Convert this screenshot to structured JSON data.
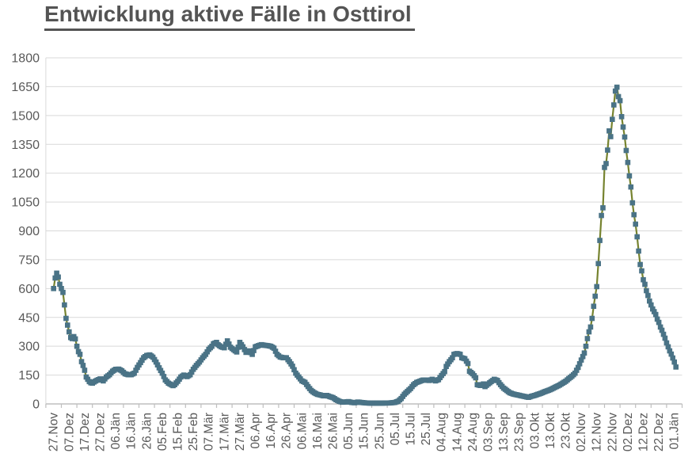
{
  "chart_data": {
    "type": "line",
    "title": "Entwicklung aktive Fälle in Osttirol",
    "xlabel": "",
    "ylabel": "",
    "legend": "none",
    "grid": "horizontal",
    "ylim": [
      0,
      1800
    ],
    "y_ticks": [
      0,
      150,
      300,
      450,
      600,
      750,
      900,
      1050,
      1200,
      1350,
      1500,
      1650,
      1800
    ],
    "x_interval_days": 10,
    "x_tick_labels": [
      "27.Nov",
      "07.Dez",
      "17.Dez",
      "27.Dez",
      "06.Jän",
      "16.Jän",
      "26.Jän",
      "05.Feb",
      "15.Feb",
      "25.Feb",
      "07.Mär",
      "17.Mär",
      "27.Mär",
      "06.Apr",
      "16.Apr",
      "26.Apr",
      "06.Mai",
      "16.Mai",
      "26.Mai",
      "05.Jun",
      "15.Jun",
      "25.Jun",
      "05.Jul",
      "15.Jul",
      "25.Jul",
      "04.Aug",
      "14.Aug",
      "24.Aug",
      "03.Sep",
      "13.Sep",
      "23.Sep",
      "03.Okt",
      "13.Okt",
      "23.Okt",
      "02.Nov",
      "12.Nov",
      "22.Nov",
      "02.Dez",
      "12.Dez",
      "22.Dez",
      "01.Jän"
    ],
    "colors": {
      "line": "#76832F",
      "marker": "#4A7386",
      "grid": "#D9D9D9",
      "axis": "#BFBFBF",
      "tick_text": "#595959",
      "title_text": "#545454"
    },
    "series": [
      {
        "name": "aktive Fälle",
        "marker": "square",
        "points": [
          [
            0,
            600
          ],
          [
            1,
            655
          ],
          [
            2,
            680
          ],
          [
            3,
            660
          ],
          [
            4,
            622
          ],
          [
            5,
            600
          ],
          [
            6,
            580
          ],
          [
            7,
            515
          ],
          [
            8,
            445
          ],
          [
            9,
            410
          ],
          [
            10,
            375
          ],
          [
            11,
            345
          ],
          [
            12,
            340
          ],
          [
            13,
            350
          ],
          [
            14,
            338
          ],
          [
            15,
            300
          ],
          [
            16,
            272
          ],
          [
            17,
            258
          ],
          [
            18,
            220
          ],
          [
            19,
            200
          ],
          [
            20,
            175
          ],
          [
            21,
            140
          ],
          [
            22,
            128
          ],
          [
            23,
            116
          ],
          [
            24,
            110
          ],
          [
            25,
            108
          ],
          [
            26,
            114
          ],
          [
            27,
            119
          ],
          [
            28,
            123
          ],
          [
            30,
            130
          ],
          [
            32,
            120
          ],
          [
            34,
            140
          ],
          [
            36,
            152
          ],
          [
            38,
            170
          ],
          [
            40,
            180
          ],
          [
            42,
            181
          ],
          [
            44,
            172
          ],
          [
            46,
            157
          ],
          [
            48,
            152
          ],
          [
            50,
            152
          ],
          [
            52,
            160
          ],
          [
            54,
            190
          ],
          [
            56,
            215
          ],
          [
            58,
            240
          ],
          [
            60,
            252
          ],
          [
            62,
            255
          ],
          [
            64,
            243
          ],
          [
            66,
            218
          ],
          [
            68,
            188
          ],
          [
            70,
            160
          ],
          [
            72,
            125
          ],
          [
            74,
            108
          ],
          [
            76,
            99
          ],
          [
            77,
            95
          ],
          [
            78,
            100
          ],
          [
            80,
            118
          ],
          [
            82,
            140
          ],
          [
            84,
            150
          ],
          [
            86,
            142
          ],
          [
            88,
            152
          ],
          [
            90,
            180
          ],
          [
            92,
            200
          ],
          [
            94,
            218
          ],
          [
            96,
            240
          ],
          [
            98,
            258
          ],
          [
            100,
            284
          ],
          [
            102,
            300
          ],
          [
            103,
            313
          ],
          [
            105,
            320
          ],
          [
            106,
            308
          ],
          [
            108,
            297
          ],
          [
            110,
            292
          ],
          [
            112,
            328
          ],
          [
            114,
            295
          ],
          [
            116,
            282
          ],
          [
            118,
            270
          ],
          [
            120,
            320
          ],
          [
            122,
            297
          ],
          [
            124,
            268
          ],
          [
            126,
            276
          ],
          [
            128,
            258
          ],
          [
            130,
            297
          ],
          [
            132,
            303
          ],
          [
            134,
            308
          ],
          [
            136,
            305
          ],
          [
            138,
            303
          ],
          [
            140,
            300
          ],
          [
            142,
            290
          ],
          [
            144,
            258
          ],
          [
            146,
            244
          ],
          [
            148,
            240
          ],
          [
            150,
            240
          ],
          [
            152,
            220
          ],
          [
            154,
            196
          ],
          [
            156,
            160
          ],
          [
            158,
            140
          ],
          [
            160,
            120
          ],
          [
            162,
            112
          ],
          [
            164,
            90
          ],
          [
            166,
            70
          ],
          [
            168,
            58
          ],
          [
            170,
            50
          ],
          [
            172,
            46
          ],
          [
            174,
            42
          ],
          [
            176,
            44
          ],
          [
            178,
            38
          ],
          [
            180,
            33
          ],
          [
            182,
            22
          ],
          [
            184,
            14
          ],
          [
            186,
            9
          ],
          [
            188,
            10
          ],
          [
            190,
            12
          ],
          [
            192,
            8
          ],
          [
            194,
            6
          ],
          [
            196,
            10
          ],
          [
            198,
            8
          ],
          [
            200,
            6
          ],
          [
            202,
            5
          ],
          [
            204,
            4
          ],
          [
            206,
            4
          ],
          [
            208,
            4
          ],
          [
            210,
            4
          ],
          [
            212,
            4
          ],
          [
            214,
            5
          ],
          [
            216,
            5
          ],
          [
            218,
            6
          ],
          [
            220,
            8
          ],
          [
            222,
            14
          ],
          [
            224,
            28
          ],
          [
            226,
            50
          ],
          [
            228,
            65
          ],
          [
            230,
            80
          ],
          [
            232,
            100
          ],
          [
            234,
            112
          ],
          [
            236,
            118
          ],
          [
            238,
            124
          ],
          [
            240,
            124
          ],
          [
            242,
            122
          ],
          [
            244,
            128
          ],
          [
            246,
            120
          ],
          [
            248,
            126
          ],
          [
            250,
            148
          ],
          [
            252,
            168
          ],
          [
            253,
            195
          ],
          [
            255,
            220
          ],
          [
            257,
            240
          ],
          [
            258,
            258
          ],
          [
            260,
            262
          ],
          [
            262,
            258
          ],
          [
            263,
            240
          ],
          [
            265,
            235
          ],
          [
            267,
            210
          ],
          [
            268,
            170
          ],
          [
            270,
            157
          ],
          [
            272,
            136
          ],
          [
            273,
            100
          ],
          [
            275,
            96
          ],
          [
            277,
            104
          ],
          [
            278,
            90
          ],
          [
            280,
            104
          ],
          [
            282,
            116
          ],
          [
            284,
            128
          ],
          [
            286,
            122
          ],
          [
            288,
            100
          ],
          [
            290,
            82
          ],
          [
            292,
            70
          ],
          [
            294,
            58
          ],
          [
            296,
            52
          ],
          [
            298,
            48
          ],
          [
            300,
            45
          ],
          [
            302,
            41
          ],
          [
            304,
            38
          ],
          [
            306,
            34
          ],
          [
            308,
            40
          ],
          [
            310,
            44
          ],
          [
            312,
            50
          ],
          [
            314,
            55
          ],
          [
            316,
            62
          ],
          [
            318,
            68
          ],
          [
            320,
            74
          ],
          [
            322,
            82
          ],
          [
            324,
            90
          ],
          [
            326,
            98
          ],
          [
            328,
            108
          ],
          [
            330,
            118
          ],
          [
            332,
            132
          ],
          [
            334,
            144
          ],
          [
            336,
            160
          ],
          [
            338,
            190
          ],
          [
            340,
            228
          ],
          [
            342,
            265
          ],
          [
            343,
            300
          ],
          [
            344,
            340
          ],
          [
            345,
            375
          ],
          [
            346,
            400
          ],
          [
            347,
            445
          ],
          [
            348,
            508
          ],
          [
            349,
            560
          ],
          [
            350,
            610
          ],
          [
            351,
            730
          ],
          [
            352,
            850
          ],
          [
            353,
            980
          ],
          [
            354,
            1020
          ],
          [
            355,
            1230
          ],
          [
            356,
            1250
          ],
          [
            357,
            1320
          ],
          [
            358,
            1420
          ],
          [
            359,
            1390
          ],
          [
            360,
            1480
          ],
          [
            361,
            1555
          ],
          [
            362,
            1627
          ],
          [
            363,
            1647
          ],
          [
            364,
            1598
          ],
          [
            365,
            1577
          ],
          [
            366,
            1494
          ],
          [
            367,
            1440
          ],
          [
            368,
            1388
          ],
          [
            369,
            1318
          ],
          [
            370,
            1256
          ],
          [
            371,
            1186
          ],
          [
            372,
            1128
          ],
          [
            373,
            1046
          ],
          [
            374,
            984
          ],
          [
            375,
            935
          ],
          [
            376,
            869
          ],
          [
            377,
            795
          ],
          [
            378,
            725
          ],
          [
            379,
            692
          ],
          [
            380,
            646
          ],
          [
            381,
            622
          ],
          [
            382,
            589
          ],
          [
            383,
            564
          ],
          [
            384,
            535
          ],
          [
            385,
            515
          ],
          [
            386,
            494
          ],
          [
            387,
            480
          ],
          [
            388,
            465
          ],
          [
            389,
            441
          ],
          [
            390,
            424
          ],
          [
            391,
            400
          ],
          [
            392,
            383
          ],
          [
            393,
            362
          ],
          [
            394,
            342
          ],
          [
            395,
            317
          ],
          [
            396,
            297
          ],
          [
            397,
            276
          ],
          [
            398,
            259
          ],
          [
            399,
            239
          ],
          [
            400,
            218
          ],
          [
            401,
            192
          ]
        ]
      }
    ]
  }
}
